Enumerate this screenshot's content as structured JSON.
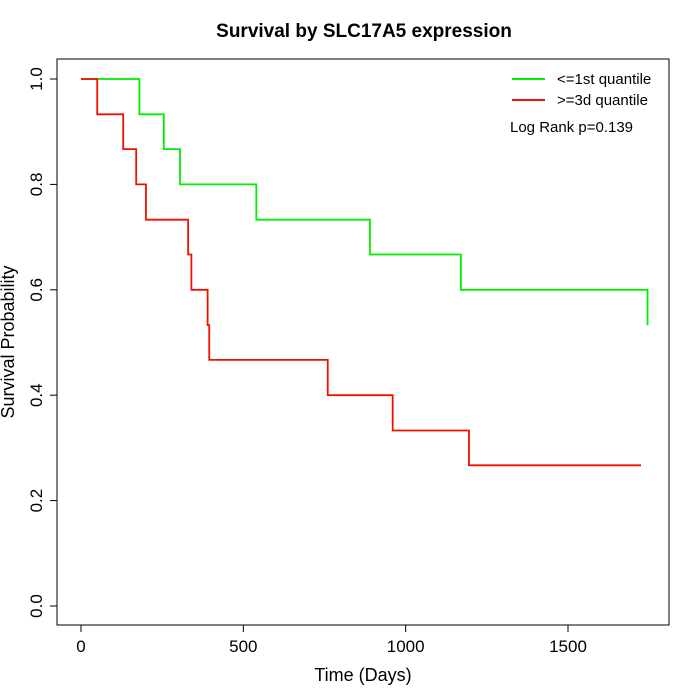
{
  "chart_data": {
    "type": "line",
    "title": "Survival by SLC17A5 expression",
    "xlabel": "Time (Days)",
    "ylabel": "Survival Probability",
    "xlim": [
      0,
      1800
    ],
    "ylim": [
      0,
      1.0
    ],
    "xticks": [
      0,
      500,
      1000,
      1500
    ],
    "yticks": [
      0.0,
      0.2,
      0.4,
      0.6,
      0.8,
      1.0
    ],
    "xtick_labels": [
      "0",
      "500",
      "1000",
      "1500"
    ],
    "ytick_labels": [
      "0.0",
      "0.2",
      "0.4",
      "0.6",
      "0.8",
      "1.0"
    ],
    "grid": false,
    "legend_position": "top-right",
    "annotation": "Log Rank p=0.139",
    "series": [
      {
        "name": "<=1st quantile",
        "color": "#00ee00",
        "step": true,
        "x": [
          0,
          180,
          255,
          305,
          540,
          890,
          1170,
          1745
        ],
        "y": [
          1.0,
          0.933,
          0.867,
          0.8,
          0.733,
          0.667,
          0.6,
          0.533
        ]
      },
      {
        "name": ">=3d quantile",
        "color": "#ee1100",
        "step": true,
        "x": [
          0,
          50,
          130,
          170,
          200,
          330,
          340,
          390,
          395,
          760,
          960,
          1195,
          1725
        ],
        "y": [
          1.0,
          0.933,
          0.867,
          0.8,
          0.733,
          0.667,
          0.6,
          0.533,
          0.467,
          0.4,
          0.333,
          0.267,
          0.267
        ]
      }
    ]
  }
}
